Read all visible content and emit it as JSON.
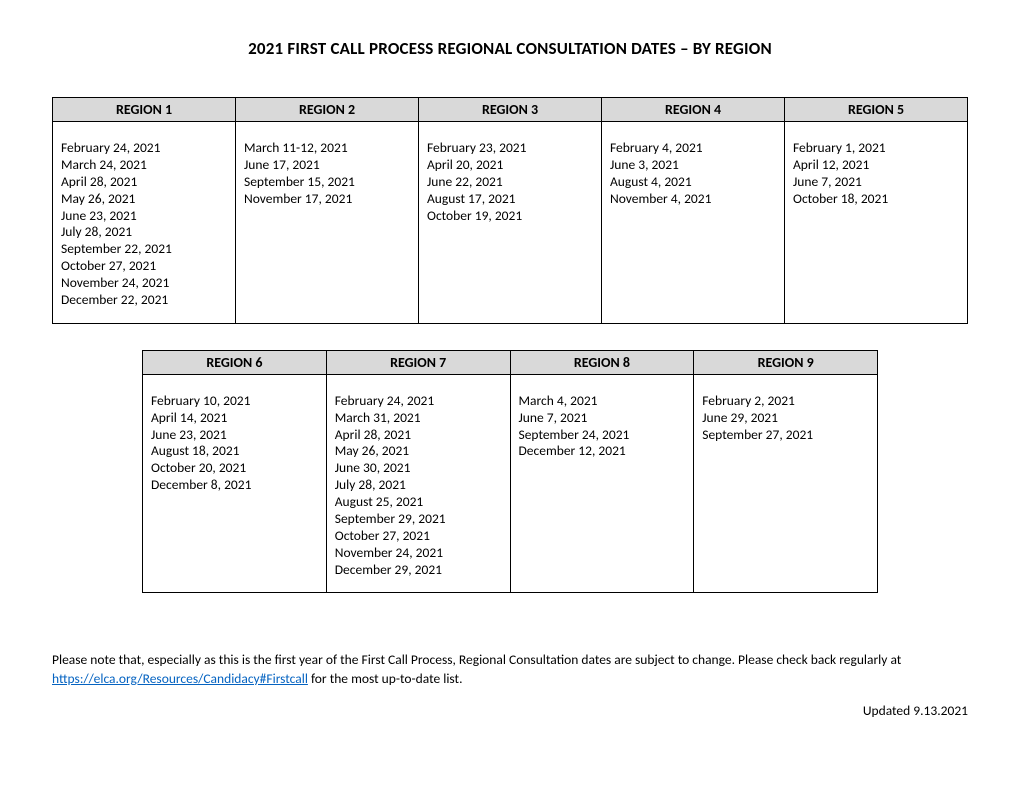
{
  "title": "2021 FIRST CALL PROCESS REGIONAL CONSULTATION DATES – BY REGION",
  "table1": {
    "headers": [
      "REGION 1",
      "REGION 2",
      "REGION 3",
      "REGION 4",
      "REGION 5"
    ],
    "columns": [
      [
        "February 24, 2021",
        "March 24, 2021",
        "April 28, 2021",
        "May 26, 2021",
        "June 23, 2021",
        "July 28, 2021",
        "September 22, 2021",
        "October 27, 2021",
        "November 24, 2021",
        "December 22, 2021"
      ],
      [
        "March 11-12, 2021",
        "June 17, 2021",
        "September 15, 2021",
        "November 17, 2021"
      ],
      [
        "February 23, 2021",
        "April 20, 2021",
        "June 22, 2021",
        "August 17, 2021",
        "October 19, 2021"
      ],
      [
        "February 4, 2021",
        "June 3, 2021",
        "August 4, 2021",
        "November 4, 2021"
      ],
      [
        "February 1, 2021",
        "April 12, 2021",
        "June 7, 2021",
        "October 18, 2021"
      ]
    ]
  },
  "table2": {
    "headers": [
      "REGION 6",
      "REGION 7",
      "REGION 8",
      "REGION 9"
    ],
    "columns": [
      [
        "February 10, 2021",
        "April 14, 2021",
        "June 23, 2021",
        "August 18, 2021",
        "October 20, 2021",
        "December 8, 2021"
      ],
      [
        "February 24, 2021",
        "March 31, 2021",
        "April 28, 2021",
        "May 26, 2021",
        "June 30, 2021",
        "July 28, 2021",
        "August 25, 2021",
        "September 29, 2021",
        "October 27, 2021",
        "November 24, 2021",
        "December 29, 2021"
      ],
      [
        "March 4, 2021",
        "June 7, 2021",
        "September 24, 2021",
        "December 12, 2021"
      ],
      [
        "February 2, 2021",
        "June 29, 2021",
        "September 27, 2021"
      ]
    ]
  },
  "note": {
    "pre": "Please note that, especially as this is the first year of the First Call Process, Regional Consultation dates are subject to change. Please check back regularly at ",
    "link_text": "https://elca.org/Resources/Candidacy#Firstcall",
    "link_href": "https://elca.org/Resources/Candidacy#Firstcall",
    "post": " for the most up-to-date list."
  },
  "updated": "Updated 9.13.2021"
}
